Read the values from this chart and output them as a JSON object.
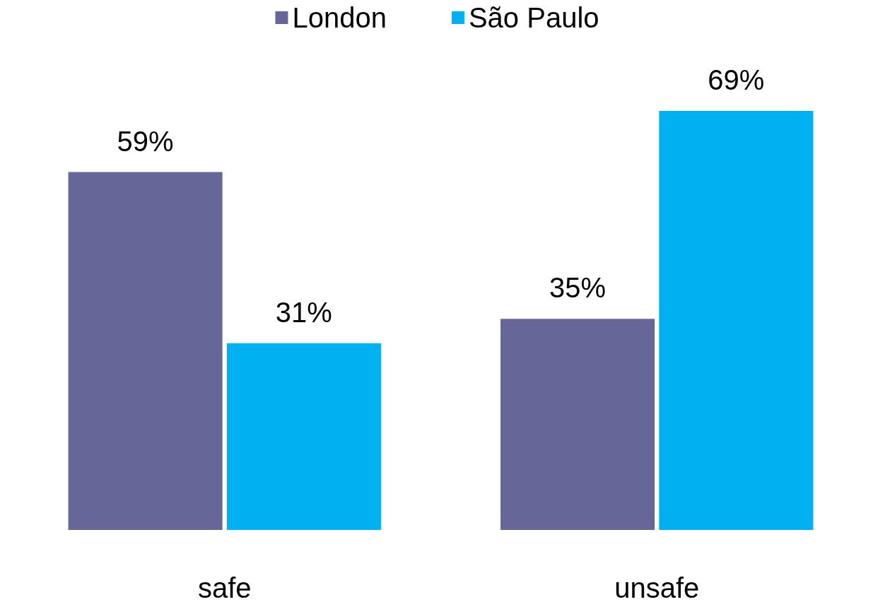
{
  "chart_data": {
    "type": "bar",
    "categories": [
      "safe",
      "unsafe"
    ],
    "series": [
      {
        "name": "London",
        "color": "#666699",
        "values": [
          59,
          35
        ],
        "value_labels": [
          "59%",
          "35%"
        ]
      },
      {
        "name": "São Paulo",
        "color": "#00b0f0",
        "values": [
          31,
          69
        ],
        "value_labels": [
          "31%",
          "69%"
        ]
      }
    ],
    "legend": "top"
  }
}
